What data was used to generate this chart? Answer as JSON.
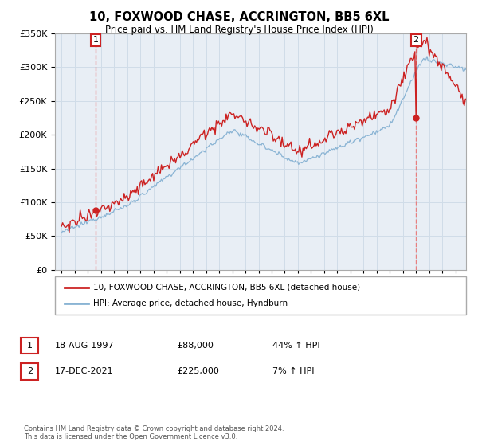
{
  "title": "10, FOXWOOD CHASE, ACCRINGTON, BB5 6XL",
  "subtitle": "Price paid vs. HM Land Registry's House Price Index (HPI)",
  "legend_line1": "10, FOXWOOD CHASE, ACCRINGTON, BB5 6XL (detached house)",
  "legend_line2": "HPI: Average price, detached house, Hyndburn",
  "annotation1_date": "18-AUG-1997",
  "annotation1_price": "£88,000",
  "annotation1_hpi": "44% ↑ HPI",
  "annotation2_date": "17-DEC-2021",
  "annotation2_price": "£225,000",
  "annotation2_hpi": "7% ↑ HPI",
  "footer": "Contains HM Land Registry data © Crown copyright and database right 2024.\nThis data is licensed under the Open Government Licence v3.0.",
  "ylim": [
    0,
    350000
  ],
  "yticks": [
    0,
    50000,
    100000,
    150000,
    200000,
    250000,
    300000,
    350000
  ],
  "hpi_color": "#8ab4d4",
  "price_color": "#cc2222",
  "vline_color": "#e88080",
  "annotation_box_color": "#cc2222",
  "grid_color": "#d0dce8",
  "plot_bg_color": "#e8eef5",
  "background_color": "#ffffff"
}
